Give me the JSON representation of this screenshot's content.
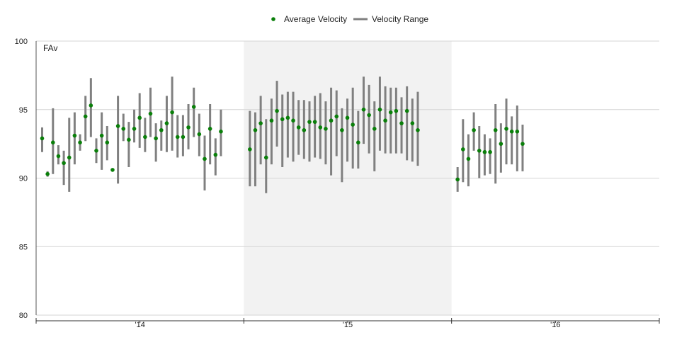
{
  "chart_data": {
    "type": "scatter",
    "corner_label": "FAv",
    "ylim": [
      80,
      100
    ],
    "yticks": [
      80,
      85,
      90,
      95,
      100
    ],
    "season_labels": [
      "'14",
      "'15",
      "'16"
    ],
    "shaded_season": "'15",
    "grid": true,
    "legend_position": "top-center",
    "legend": [
      {
        "name": "Average Velocity",
        "type": "point",
        "color": "#0a7f0a"
      },
      {
        "name": "Velocity Range",
        "type": "range",
        "color": "#808080"
      }
    ],
    "series": [
      {
        "name": "'14",
        "points": [
          {
            "avg": 92.9,
            "min": 91.9,
            "max": 93.7
          },
          {
            "avg": 90.3,
            "min": 90.1,
            "max": 90.5
          },
          {
            "avg": 92.6,
            "min": 90.3,
            "max": 95.1
          },
          {
            "avg": 91.6,
            "min": 91.0,
            "max": 92.4
          },
          {
            "avg": 91.1,
            "min": 89.5,
            "max": 92.0
          },
          {
            "avg": 91.5,
            "min": 89.0,
            "max": 94.4
          },
          {
            "avg": 93.1,
            "min": 91.0,
            "max": 94.8
          },
          {
            "avg": 92.6,
            "min": 92.0,
            "max": 93.2
          },
          {
            "avg": 94.5,
            "min": 92.7,
            "max": 96.0
          },
          {
            "avg": 95.3,
            "min": 93.0,
            "max": 97.3
          },
          {
            "avg": 92.0,
            "min": 91.1,
            "max": 92.9
          },
          {
            "avg": 93.1,
            "min": 90.6,
            "max": 94.8
          },
          {
            "avg": 92.6,
            "min": 91.3,
            "max": 93.8
          },
          {
            "avg": 90.6,
            "min": 90.6,
            "max": 90.6
          },
          {
            "avg": 93.8,
            "min": 89.6,
            "max": 96.0
          },
          {
            "avg": 93.6,
            "min": 92.7,
            "max": 94.7
          },
          {
            "avg": 92.8,
            "min": 90.8,
            "max": 94.1
          },
          {
            "avg": 93.6,
            "min": 92.6,
            "max": 95.0
          },
          {
            "avg": 94.4,
            "min": 92.2,
            "max": 96.2
          },
          {
            "avg": 93.0,
            "min": 91.9,
            "max": 94.4
          },
          {
            "avg": 94.7,
            "min": 93.0,
            "max": 96.6
          },
          {
            "avg": 92.9,
            "min": 91.2,
            "max": 94.0
          },
          {
            "avg": 93.5,
            "min": 92.0,
            "max": 94.2
          },
          {
            "avg": 94.0,
            "min": 91.9,
            "max": 96.0
          },
          {
            "avg": 94.8,
            "min": 92.0,
            "max": 97.4
          },
          {
            "avg": 93.0,
            "min": 91.5,
            "max": 94.6
          },
          {
            "avg": 93.0,
            "min": 91.6,
            "max": 94.6
          },
          {
            "avg": 93.7,
            "min": 92.1,
            "max": 95.4
          },
          {
            "avg": 95.2,
            "min": 93.0,
            "max": 96.6
          },
          {
            "avg": 93.2,
            "min": 91.6,
            "max": 94.7
          },
          {
            "avg": 91.4,
            "min": 89.1,
            "max": 93.1
          },
          {
            "avg": 93.6,
            "min": 91.0,
            "max": 95.4
          },
          {
            "avg": 91.7,
            "min": 90.2,
            "max": 92.9
          },
          {
            "avg": 93.4,
            "min": 91.6,
            "max": 95.0
          }
        ]
      },
      {
        "name": "'15",
        "points": [
          {
            "avg": 92.1,
            "min": 89.4,
            "max": 94.9
          },
          {
            "avg": 93.5,
            "min": 89.4,
            "max": 94.8
          },
          {
            "avg": 94.0,
            "min": 91.0,
            "max": 96.0
          },
          {
            "avg": 91.5,
            "min": 88.9,
            "max": 94.3
          },
          {
            "avg": 94.2,
            "min": 91.0,
            "max": 95.8
          },
          {
            "avg": 94.9,
            "min": 92.3,
            "max": 97.1
          },
          {
            "avg": 94.3,
            "min": 90.8,
            "max": 96.1
          },
          {
            "avg": 94.4,
            "min": 91.5,
            "max": 96.3
          },
          {
            "avg": 94.2,
            "min": 91.2,
            "max": 96.3
          },
          {
            "avg": 93.7,
            "min": 91.7,
            "max": 95.7
          },
          {
            "avg": 93.5,
            "min": 91.4,
            "max": 95.7
          },
          {
            "avg": 94.1,
            "min": 91.2,
            "max": 95.6
          },
          {
            "avg": 94.1,
            "min": 91.5,
            "max": 96.0
          },
          {
            "avg": 93.7,
            "min": 91.4,
            "max": 96.2
          },
          {
            "avg": 93.6,
            "min": 91.0,
            "max": 95.6
          },
          {
            "avg": 94.2,
            "min": 90.2,
            "max": 96.6
          },
          {
            "avg": 94.5,
            "min": 91.6,
            "max": 96.4
          },
          {
            "avg": 93.5,
            "min": 89.7,
            "max": 95.1
          },
          {
            "avg": 94.4,
            "min": 91.2,
            "max": 95.8
          },
          {
            "avg": 93.9,
            "min": 90.7,
            "max": 96.6
          },
          {
            "avg": 92.6,
            "min": 90.7,
            "max": 94.9
          },
          {
            "avg": 95.0,
            "min": 92.5,
            "max": 97.4
          },
          {
            "avg": 94.6,
            "min": 91.8,
            "max": 96.8
          },
          {
            "avg": 93.6,
            "min": 90.5,
            "max": 95.6
          },
          {
            "avg": 95.0,
            "min": 92.0,
            "max": 97.4
          },
          {
            "avg": 94.2,
            "min": 91.8,
            "max": 96.7
          },
          {
            "avg": 94.8,
            "min": 91.8,
            "max": 96.6
          },
          {
            "avg": 94.9,
            "min": 91.8,
            "max": 96.6
          },
          {
            "avg": 94.0,
            "min": 91.8,
            "max": 95.9
          },
          {
            "avg": 94.9,
            "min": 91.3,
            "max": 96.7
          },
          {
            "avg": 94.0,
            "min": 91.2,
            "max": 95.8
          },
          {
            "avg": 93.5,
            "min": 90.9,
            "max": 96.3
          }
        ]
      },
      {
        "name": "'16",
        "points": [
          {
            "avg": 89.9,
            "min": 89.0,
            "max": 90.8
          },
          {
            "avg": 92.1,
            "min": 89.7,
            "max": 94.3
          },
          {
            "avg": 91.4,
            "min": 89.4,
            "max": 93.2
          },
          {
            "avg": 93.5,
            "min": 92.0,
            "max": 94.8
          },
          {
            "avg": 92.0,
            "min": 90.0,
            "max": 93.8
          },
          {
            "avg": 91.9,
            "min": 90.2,
            "max": 93.2
          },
          {
            "avg": 91.9,
            "min": 90.3,
            "max": 92.9
          },
          {
            "avg": 93.5,
            "min": 89.6,
            "max": 95.4
          },
          {
            "avg": 92.5,
            "min": 90.4,
            "max": 94.0
          },
          {
            "avg": 93.6,
            "min": 91.0,
            "max": 95.8
          },
          {
            "avg": 93.4,
            "min": 91.0,
            "max": 94.5
          },
          {
            "avg": 93.4,
            "min": 90.5,
            "max": 95.3
          },
          {
            "avg": 92.5,
            "min": 90.5,
            "max": 93.9
          }
        ]
      }
    ]
  }
}
